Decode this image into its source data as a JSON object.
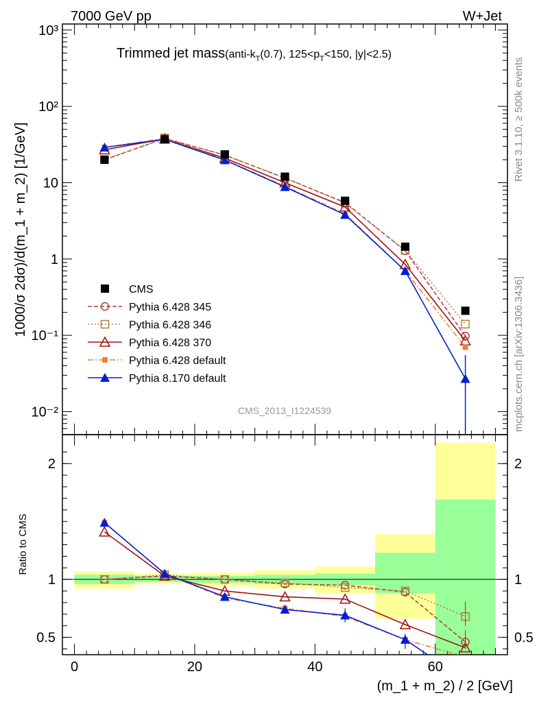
{
  "header": {
    "left": "7000 GeV pp",
    "right": "W+Jet"
  },
  "title": {
    "main": "Trimmed jet mass",
    "detail": "(anti-k",
    "detail_sub": "T",
    "detail_b": "(0.7), 125<p",
    "detail_sub2": "T",
    "detail_c": "<150, |y|<2.5)"
  },
  "side_labels": {
    "rivet": "Rivet 3.1.10, ≥ 500k events",
    "mcplots": "mcplots.cern.ch [arXiv:1306.3436]"
  },
  "watermark": "CMS_2013_I1224539",
  "colors": {
    "cms": "#000000",
    "p345": "#b04040",
    "p346": "#b08040",
    "p370": "#a01010",
    "pdef": "#f08030",
    "p8": "#0020d0",
    "green": "#99ff99",
    "yellow": "#ffff99"
  },
  "chart_data": [
    {
      "type": "line",
      "ylabel": "1000/σ 2dσ)/d(m_1 + m_2) [1/GeV]",
      "yscale": "log",
      "ylim": [
        0.005,
        1200
      ],
      "xlim": [
        -2,
        72
      ],
      "y_ticks": [
        "10⁻²",
        "10⁻¹",
        "1",
        "10",
        "10²",
        "10³"
      ],
      "x": [
        5,
        15,
        25,
        35,
        45,
        55,
        65
      ],
      "series": [
        {
          "name": "CMS",
          "marker": "square-filled",
          "values": [
            20,
            37,
            23.5,
            12,
            5.8,
            1.45,
            0.21
          ]
        },
        {
          "name": "Pythia 6.428 345",
          "marker": "circle-open",
          "values": [
            20,
            38,
            23,
            11.5,
            5.5,
            1.28,
            0.098
          ]
        },
        {
          "name": "Pythia 6.428 346",
          "marker": "square-open",
          "values": [
            20,
            38.5,
            23,
            11.5,
            5.4,
            1.3,
            0.14
          ]
        },
        {
          "name": "Pythia 6.428 370",
          "marker": "triangle-open",
          "values": [
            27,
            37.5,
            21,
            10,
            4.8,
            0.85,
            0.085
          ]
        },
        {
          "name": "Pythia 6.428 default",
          "marker": "square-small",
          "values": [
            29,
            38,
            20,
            9,
            3.9,
            0.7,
            0.07
          ]
        },
        {
          "name": "Pythia 8.170 default",
          "marker": "triangle-filled",
          "values": [
            29,
            37,
            19.8,
            8.8,
            3.8,
            0.7,
            0.027
          ]
        }
      ]
    },
    {
      "type": "line",
      "ylabel": "Ratio to CMS",
      "ylim": [
        0.35,
        2.25
      ],
      "y_ticks": [
        "0.5",
        "1",
        "2"
      ],
      "x_ticks": [
        "0",
        "20",
        "40",
        "60"
      ],
      "xlabel": "(m_1 + m_2) / 2 [GeV]",
      "x": [
        5,
        15,
        25,
        35,
        45,
        55,
        65
      ],
      "bands": {
        "edges": [
          0,
          10,
          20,
          30,
          40,
          50,
          60,
          70
        ],
        "green_lo": [
          0.96,
          0.98,
          0.97,
          0.96,
          0.95,
          0.88,
          0.33
        ],
        "green_hi": [
          1.04,
          1.03,
          1.03,
          1.04,
          1.05,
          1.23,
          1.69
        ],
        "yellow_lo": [
          0.92,
          0.96,
          0.94,
          0.92,
          0.88,
          0.66,
          0.33
        ],
        "yellow_hi": [
          1.07,
          1.05,
          1.06,
          1.08,
          1.11,
          1.39,
          2.18
        ]
      },
      "series": [
        {
          "name": "Pythia 6.428 345",
          "values": [
            1.0,
            1.03,
            1.0,
            0.96,
            0.95,
            0.89,
            0.46
          ]
        },
        {
          "name": "Pythia 6.428 346",
          "values": [
            1.0,
            1.04,
            1.0,
            0.97,
            0.93,
            0.9,
            0.68
          ]
        },
        {
          "name": "Pythia 6.428 370",
          "values": [
            1.41,
            1.03,
            0.9,
            0.85,
            0.83,
            0.61,
            0.41
          ]
        },
        {
          "name": "Pythia 6.428 default",
          "values": [
            1.49,
            1.05,
            0.84,
            0.75,
            0.68,
            0.48,
            0.33
          ]
        },
        {
          "name": "Pythia 8.170 default",
          "values": [
            1.49,
            1.05,
            0.85,
            0.74,
            0.69,
            0.48,
            0.13
          ]
        }
      ]
    }
  ]
}
